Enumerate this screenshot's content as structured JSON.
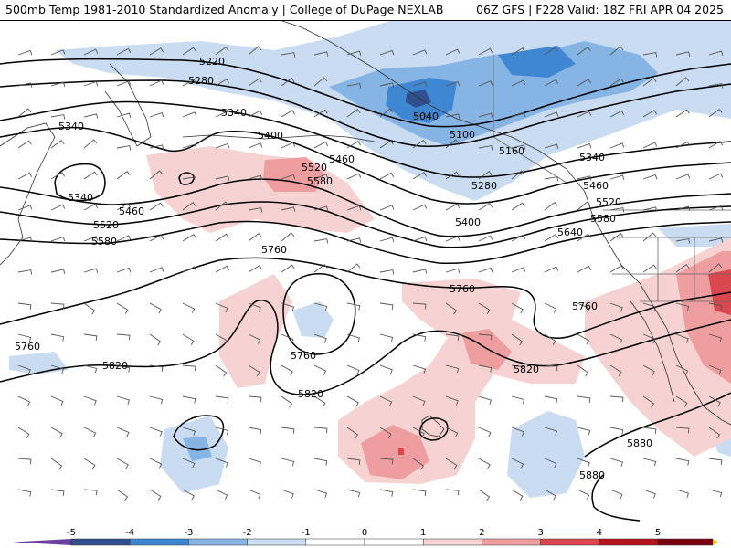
{
  "header": {
    "title_left": "500mb Temp 1981-2010 Standardized Anomaly | College of DuPage NEXLAB",
    "title_right": "06Z GFS | F228 Valid: 18Z FRI APR 04 2025"
  },
  "colors": {
    "anom_neg5": "#6b3fa0",
    "anom_neg4": "#2f4f8f",
    "anom_neg3": "#3f87d2",
    "anom_neg2": "#86b4e4",
    "anom_neg1": "#c9dcf1",
    "anom_zero": "#ffffff",
    "anom_pos1": "#f6d2d2",
    "anom_pos2": "#ee9e9e",
    "anom_pos3": "#d9484e",
    "anom_pos4": "#b5121b",
    "anom_pos5": "#7a0010",
    "anom_top": "#f2c200",
    "contour": "#000000",
    "coastline": "#333333",
    "barb": "#555555"
  },
  "contour_labels": [
    {
      "text": "5220"
    },
    {
      "text": "5280"
    },
    {
      "text": "5340"
    },
    {
      "text": "5340"
    },
    {
      "text": "5340"
    },
    {
      "text": "5400"
    },
    {
      "text": "5460"
    },
    {
      "text": "5520"
    },
    {
      "text": "5520"
    },
    {
      "text": "5580"
    },
    {
      "text": "5580"
    },
    {
      "text": "5460"
    },
    {
      "text": "5760"
    },
    {
      "text": "5760"
    },
    {
      "text": "5760"
    },
    {
      "text": "5760"
    },
    {
      "text": "5820"
    },
    {
      "text": "5820"
    },
    {
      "text": "5820"
    },
    {
      "text": "5040"
    },
    {
      "text": "5100"
    },
    {
      "text": "5160"
    },
    {
      "text": "5280"
    },
    {
      "text": "5400"
    },
    {
      "text": "5340"
    },
    {
      "text": "5460"
    },
    {
      "text": "5520"
    },
    {
      "text": "5580"
    },
    {
      "text": "5640"
    },
    {
      "text": "5760"
    },
    {
      "text": "5880"
    },
    {
      "text": "5880"
    }
  ],
  "colorbar": {
    "ticks": [
      "-5",
      "-4",
      "-3",
      "-2",
      "-1",
      "0",
      "1",
      "2",
      "3",
      "4",
      "5"
    ]
  }
}
